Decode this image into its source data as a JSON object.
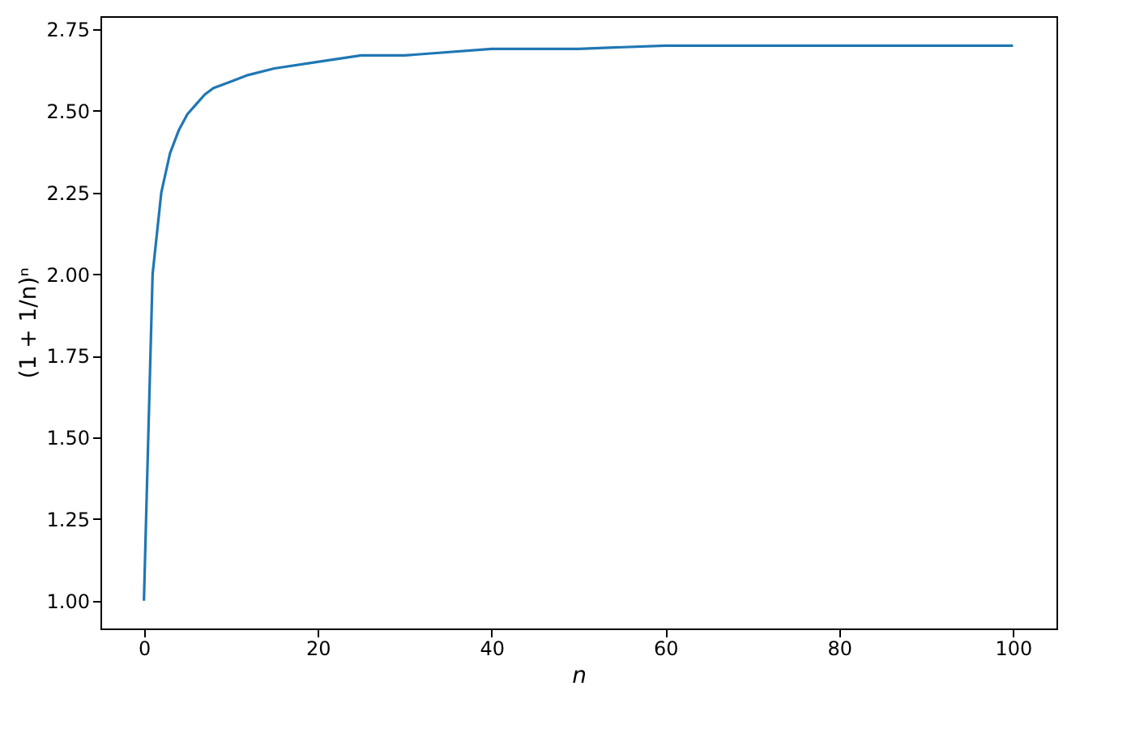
{
  "chart_data": {
    "type": "line",
    "xlabel": "n",
    "ylabel": "(1 + 1/n)ⁿ",
    "x": [
      0,
      1,
      2,
      3,
      4,
      5,
      6,
      7,
      8,
      9,
      10,
      12,
      15,
      20,
      25,
      30,
      40,
      50,
      60,
      70,
      80,
      90,
      100
    ],
    "values": [
      1.0,
      2.0,
      2.25,
      2.37,
      2.44,
      2.49,
      2.52,
      2.55,
      2.57,
      2.58,
      2.59,
      2.61,
      2.63,
      2.65,
      2.67,
      2.67,
      2.69,
      2.69,
      2.7,
      2.7,
      2.7,
      2.7,
      2.7
    ],
    "color": "#1f77b4",
    "xlim": [
      -5,
      105
    ],
    "ylim": [
      0.915,
      2.79
    ],
    "xticks": [
      0,
      20,
      40,
      60,
      80,
      100
    ],
    "yticks": [
      {
        "value": 1.0,
        "label": "1.00"
      },
      {
        "value": 1.25,
        "label": "1.25"
      },
      {
        "value": 1.5,
        "label": "1.50"
      },
      {
        "value": 1.75,
        "label": "1.75"
      },
      {
        "value": 2.0,
        "label": "2.00"
      },
      {
        "value": 2.25,
        "label": "2.25"
      },
      {
        "value": 2.5,
        "label": "2.50"
      },
      {
        "value": 2.75,
        "label": "2.75"
      }
    ],
    "grid": false,
    "marker": "none",
    "line_style": "solid"
  }
}
